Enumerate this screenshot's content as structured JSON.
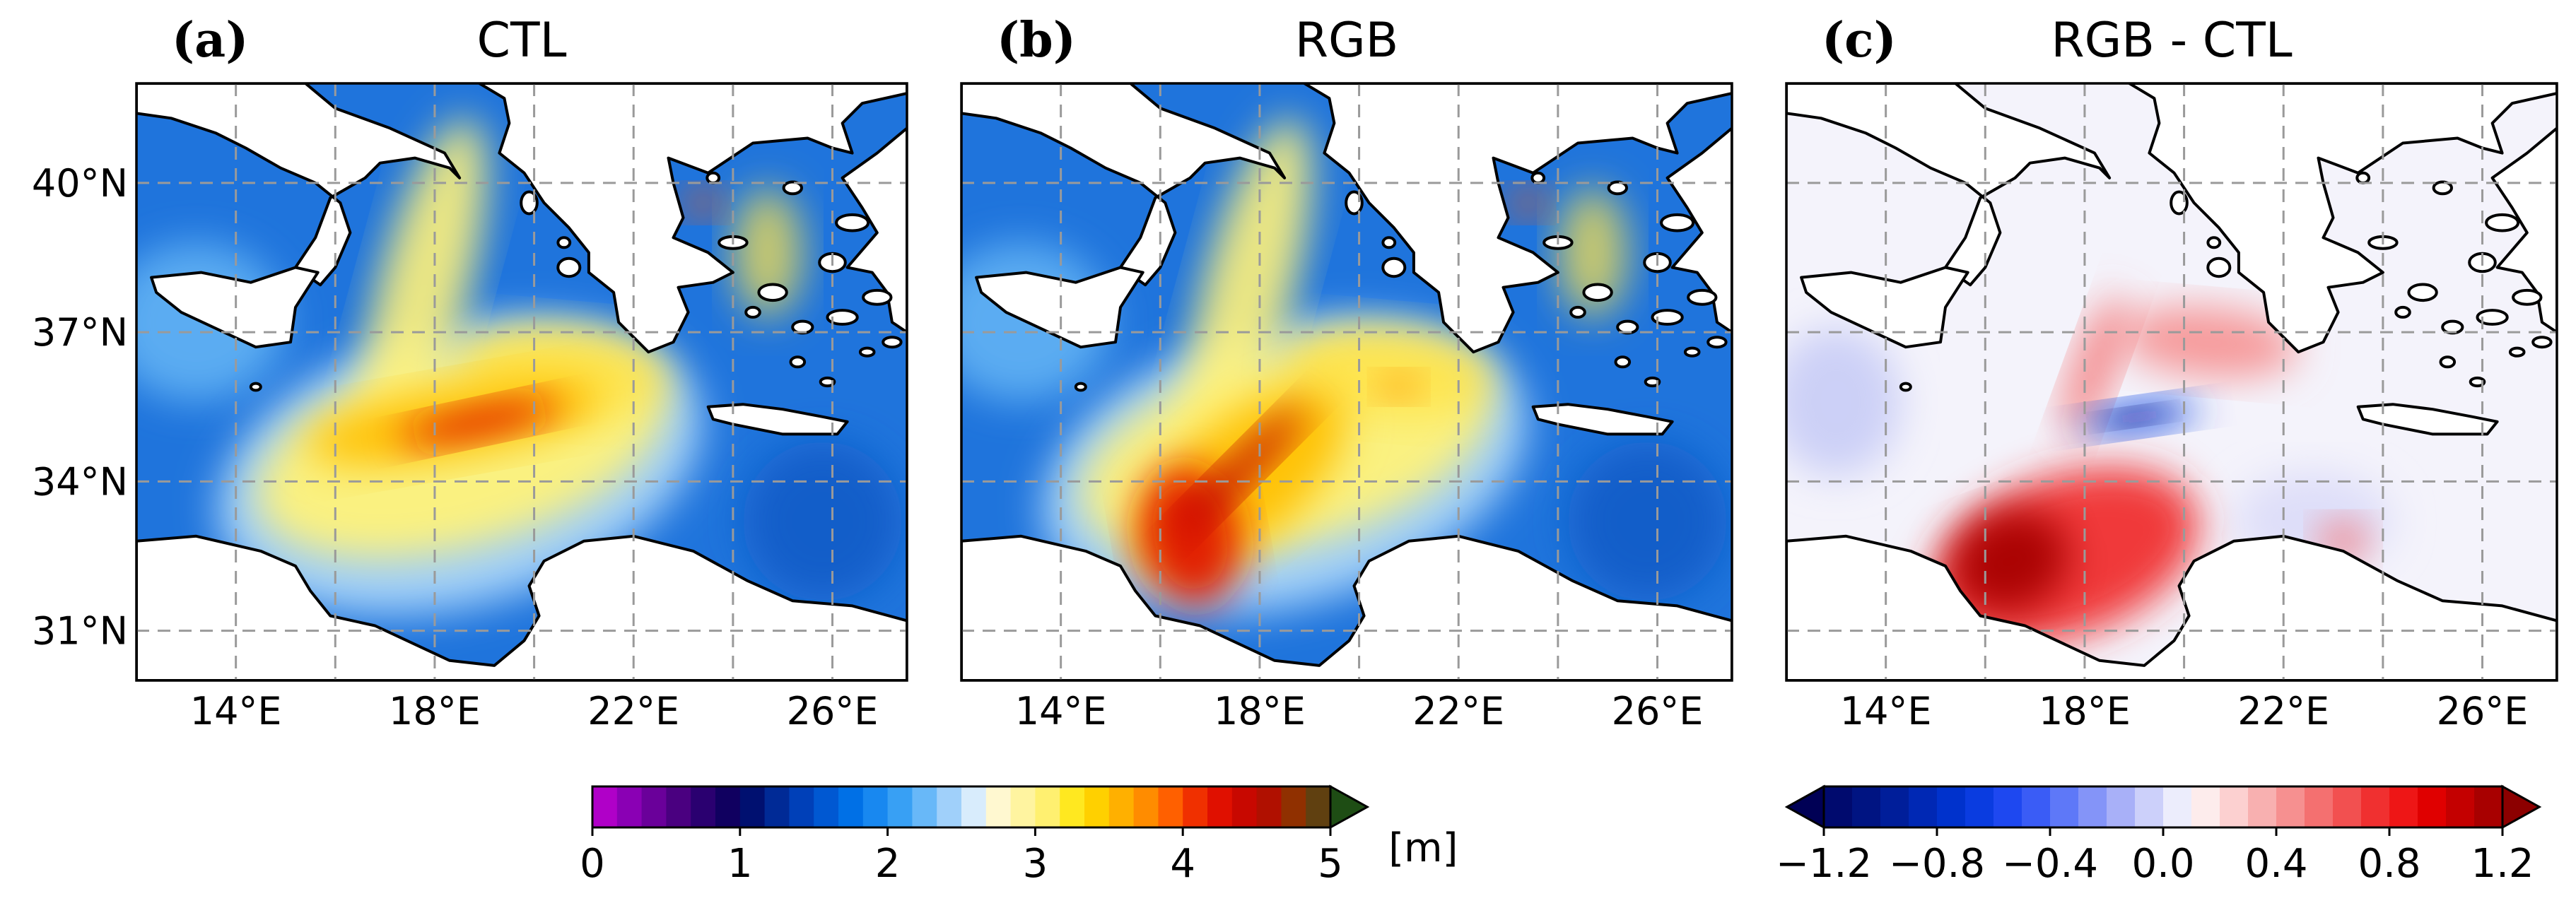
{
  "panels": [
    {
      "id": "a",
      "letter": "(a)",
      "title": "CTL",
      "scale": "wave",
      "peak": 4.3
    },
    {
      "id": "b",
      "letter": "(b)",
      "title": "RGB",
      "scale": "wave",
      "peak": 4.6
    },
    {
      "id": "c",
      "letter": "(c)",
      "title": "RGB - CTL",
      "scale": "diff"
    }
  ],
  "axes": {
    "lon_ticks": [
      14,
      18,
      22,
      26
    ],
    "lon_tick_labels": [
      "14°E",
      "18°E",
      "22°E",
      "26°E"
    ],
    "lat_ticks": [
      31,
      34,
      37,
      40
    ],
    "lat_tick_labels": [
      "31°N",
      "34°N",
      "37°N",
      "40°N"
    ],
    "lon_range": [
      12,
      27.5
    ],
    "lat_range": [
      30,
      42
    ],
    "grid": true
  },
  "colorbars": [
    {
      "name": "wave-height",
      "range": [
        0,
        5
      ],
      "ticks": [
        "0",
        "1",
        "2",
        "3",
        "4",
        "5"
      ],
      "unit": "[m]",
      "extend": "max",
      "colors": [
        "#b000c8",
        "#8a00b4",
        "#6a009a",
        "#4a0080",
        "#2a0070",
        "#100060",
        "#001070",
        "#002a96",
        "#0040b8",
        "#0058d2",
        "#0070e6",
        "#1888f0",
        "#38a0f4",
        "#68b8f8",
        "#a0d0fa",
        "#d8ecfc",
        "#fff8d0",
        "#fff4a0",
        "#fff070",
        "#ffe820",
        "#ffd000",
        "#ffb000",
        "#ff8c00",
        "#ff6000",
        "#f03000",
        "#e01000",
        "#c80800",
        "#b01000",
        "#903000",
        "#604010"
      ],
      "extend_color": "#1e4d14"
    },
    {
      "name": "difference",
      "range": [
        -1.2,
        1.2
      ],
      "ticks": [
        "−1.2",
        "−0.8",
        "−0.4",
        "0.0",
        "0.4",
        "0.8",
        "1.2"
      ],
      "extend": "both",
      "colors": [
        "#000a6e",
        "#001482",
        "#001e9a",
        "#0028b4",
        "#0032cc",
        "#0a3ce0",
        "#1e48f0",
        "#3a5cf6",
        "#5e78f8",
        "#8494f8",
        "#a8b0f8",
        "#ccd0fa",
        "#ecedfc",
        "#fdecec",
        "#fcd0d0",
        "#f8b0b0",
        "#f69090",
        "#f47070",
        "#f25050",
        "#f03030",
        "#ee1616",
        "#e00000",
        "#c40000",
        "#a80000"
      ],
      "extend_low_color": "#000055",
      "extend_high_color": "#8c0000"
    }
  ]
}
